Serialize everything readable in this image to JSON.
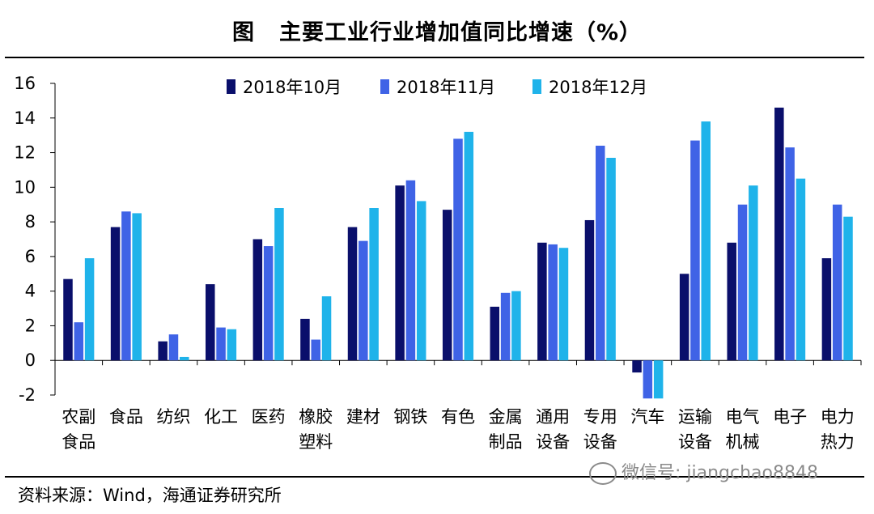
{
  "title": {
    "label": "图",
    "text": "主要工业行业增加值同比增速（%）"
  },
  "source": "资料来源：Wind，海通证券研究所",
  "watermark": "微信号: jiangchao8848",
  "chart_data": {
    "type": "bar",
    "title": "主要工业行业增加值同比增速（%）",
    "ylim": [
      -2,
      16
    ],
    "yticks": [
      -2,
      0,
      2,
      4,
      6,
      8,
      10,
      12,
      14,
      16
    ],
    "legend_position": "top-center",
    "categories": [
      [
        "农副",
        "食品"
      ],
      [
        "食品"
      ],
      [
        "纺织"
      ],
      [
        "化工"
      ],
      [
        "医药"
      ],
      [
        "橡胶",
        "塑料"
      ],
      [
        "建材"
      ],
      [
        "钢铁"
      ],
      [
        "有色"
      ],
      [
        "金属",
        "制品"
      ],
      [
        "通用",
        "设备"
      ],
      [
        "专用",
        "设备"
      ],
      [
        "汽车"
      ],
      [
        "运输",
        "设备"
      ],
      [
        "电气",
        "机械"
      ],
      [
        "电子"
      ],
      [
        "电力",
        "热力"
      ]
    ],
    "series": [
      {
        "name": "2018年10月",
        "color": "#0a0f6b",
        "values": [
          4.7,
          7.7,
          1.1,
          4.4,
          7.0,
          2.4,
          7.7,
          10.1,
          8.7,
          3.1,
          6.8,
          8.1,
          -0.7,
          5.0,
          6.8,
          14.6,
          5.9
        ]
      },
      {
        "name": "2018年11月",
        "color": "#3f63e6",
        "values": [
          2.2,
          8.6,
          1.5,
          1.9,
          6.6,
          1.2,
          6.9,
          10.4,
          12.8,
          3.9,
          6.7,
          12.4,
          -2.2,
          12.7,
          9.0,
          12.3,
          9.0
        ]
      },
      {
        "name": "2018年12月",
        "color": "#1fb3ea",
        "values": [
          5.9,
          8.5,
          0.2,
          1.8,
          8.8,
          3.7,
          8.8,
          9.2,
          13.2,
          4.0,
          6.5,
          11.7,
          -2.2,
          13.8,
          10.1,
          10.5,
          8.3
        ]
      }
    ]
  }
}
